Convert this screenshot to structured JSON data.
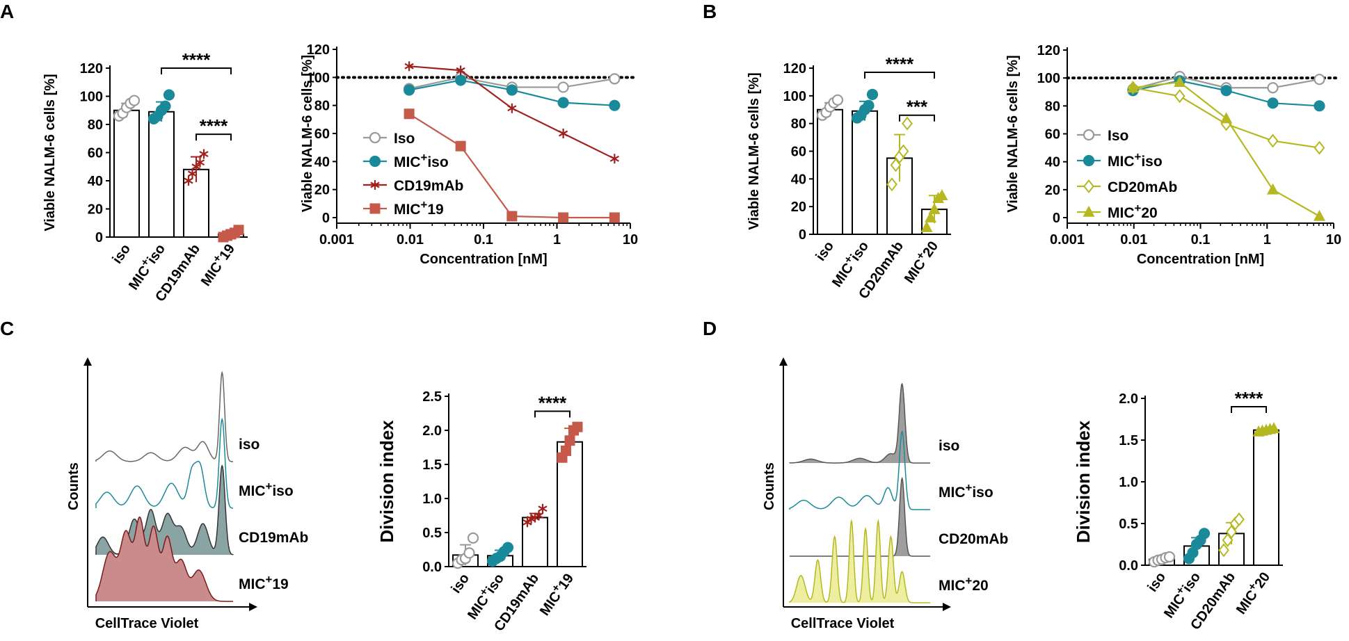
{
  "panel_letters": [
    "A",
    "B",
    "C",
    "D"
  ],
  "chart_data": [
    {
      "id": "A1",
      "type": "bar",
      "ylabel": "Viable NALM-6 cells [%]",
      "ylim": [
        0,
        120
      ],
      "yticks": [
        0,
        20,
        40,
        60,
        80,
        100,
        120
      ],
      "categories": [
        {
          "pre": "iso",
          "sup": "",
          "post": ""
        },
        {
          "pre": "MIC",
          "sup": "+",
          "post": "iso"
        },
        {
          "pre": "CD19mAb",
          "sup": "",
          "post": ""
        },
        {
          "pre": "MIC",
          "sup": "+",
          "post": "19"
        }
      ],
      "bars": [
        {
          "value": 90,
          "err": 5,
          "color": "#999999",
          "marker": "circle-open",
          "points": [
            86,
            88,
            92,
            95,
            97
          ]
        },
        {
          "value": 89,
          "err": 7,
          "color": "#1a8a9a",
          "marker": "circle",
          "points": [
            84,
            86,
            90,
            93,
            101
          ]
        },
        {
          "value": 48,
          "err": 9,
          "color": "#a0201c",
          "marker": "asterisk",
          "points": [
            40,
            45,
            50,
            53,
            59
          ]
        },
        {
          "value": 2,
          "err": 3,
          "color": "#c55a4b",
          "marker": "square",
          "points": [
            0,
            1,
            2,
            3,
            5
          ]
        }
      ],
      "significance": [
        {
          "from": 1,
          "to": 3,
          "label": "****",
          "y": 120
        },
        {
          "from": 2,
          "to": 3,
          "label": "****",
          "y": 73
        }
      ]
    },
    {
      "id": "A2",
      "type": "line",
      "log_x": true,
      "xlabel": "Concentration [nM]",
      "ylabel": "Viable NALM-6 cells [%]",
      "xlim": [
        0.001,
        10
      ],
      "xticks": [
        "0.001",
        "0.01",
        "0.1",
        "1",
        "10"
      ],
      "ylim": [
        0,
        120
      ],
      "yticks": [
        0,
        20,
        40,
        60,
        80,
        100,
        120
      ],
      "reference_line": 100,
      "x": [
        0.0097,
        0.0488,
        0.244,
        1.22,
        6.1
      ],
      "series": [
        {
          "pre": "Iso",
          "sup": "",
          "post": "",
          "color": "#999999",
          "marker": "circle-open",
          "values": [
            92,
            100,
            93,
            93,
            99
          ]
        },
        {
          "pre": "MIC",
          "sup": "+",
          "post": "iso",
          "color": "#1a8a9a",
          "marker": "circle",
          "values": [
            91,
            98,
            91,
            82,
            80
          ]
        },
        {
          "pre": "CD19mAb",
          "sup": "",
          "post": "",
          "color": "#a0201c",
          "marker": "asterisk",
          "values": [
            108,
            105,
            78,
            60,
            42
          ]
        },
        {
          "pre": "MIC",
          "sup": "+",
          "post": "19",
          "color": "#c55a4b",
          "marker": "square",
          "values": [
            74,
            51,
            1,
            0,
            0
          ]
        }
      ]
    },
    {
      "id": "B1",
      "type": "bar",
      "ylabel": "Viable NALM-6 cells [%]",
      "ylim": [
        0,
        120
      ],
      "yticks": [
        0,
        20,
        40,
        60,
        80,
        100,
        120
      ],
      "categories": [
        {
          "pre": "iso",
          "sup": "",
          "post": ""
        },
        {
          "pre": "MIC",
          "sup": "+",
          "post": "iso"
        },
        {
          "pre": "CD20mAb",
          "sup": "",
          "post": ""
        },
        {
          "pre": "MIC",
          "sup": "+",
          "post": "20"
        }
      ],
      "bars": [
        {
          "value": 90,
          "err": 5,
          "color": "#999999",
          "marker": "circle-open",
          "points": [
            86,
            88,
            92,
            95,
            97
          ]
        },
        {
          "value": 89,
          "err": 7,
          "color": "#1a8a9a",
          "marker": "circle",
          "points": [
            84,
            86,
            90,
            93,
            101
          ]
        },
        {
          "value": 55,
          "err": 17,
          "color": "#b5b821",
          "marker": "diamond-open",
          "points": [
            36,
            50,
            56,
            60,
            80
          ]
        },
        {
          "value": 18,
          "err": 10,
          "color": "#b5b821",
          "marker": "triangle",
          "points": [
            5,
            12,
            18,
            26,
            28
          ]
        }
      ],
      "significance": [
        {
          "from": 1,
          "to": 3,
          "label": "****",
          "y": 117
        },
        {
          "from": 2,
          "to": 3,
          "label": "***",
          "y": 86
        }
      ]
    },
    {
      "id": "B2",
      "type": "line",
      "log_x": true,
      "xlabel": "Concentration [nM]",
      "ylabel": "Viable NALM-6 cells [%]",
      "xlim": [
        0.001,
        10
      ],
      "xticks": [
        "0.001",
        "0.01",
        "0.1",
        "1",
        "10"
      ],
      "ylim": [
        0,
        120
      ],
      "yticks": [
        0,
        20,
        40,
        60,
        80,
        100,
        120
      ],
      "reference_line": 100,
      "x": [
        0.0097,
        0.0488,
        0.244,
        1.22,
        6.1
      ],
      "series": [
        {
          "pre": "Iso",
          "sup": "",
          "post": "",
          "color": "#999999",
          "marker": "circle-open",
          "values": [
            92,
            101,
            93,
            93,
            99
          ]
        },
        {
          "pre": "MIC",
          "sup": "+",
          "post": "iso",
          "color": "#1a8a9a",
          "marker": "circle",
          "values": [
            91,
            98,
            91,
            82,
            80
          ]
        },
        {
          "pre": "CD20mAb",
          "sup": "",
          "post": "",
          "color": "#b5b821",
          "marker": "diamond-open",
          "values": [
            93,
            87,
            67,
            55,
            50
          ]
        },
        {
          "pre": "MIC",
          "sup": "+",
          "post": "20",
          "color": "#b5b821",
          "marker": "triangle",
          "values": [
            93,
            97,
            71,
            20,
            1
          ]
        }
      ]
    },
    {
      "id": "C1",
      "type": "histogram",
      "xlabel": "CellTrace Violet",
      "ylabel": "Counts",
      "tracks": [
        {
          "pre": "iso",
          "sup": "",
          "post": "",
          "line": "#666666",
          "fill": "none",
          "peaks": [
            [
              0.1,
              0.05,
              0.12
            ],
            [
              0.4,
              0.05,
              0.1
            ],
            [
              0.65,
              0.05,
              0.16
            ],
            [
              0.78,
              0.04,
              0.22
            ],
            [
              0.92,
              0.018,
              1.0
            ]
          ]
        },
        {
          "pre": "MIC",
          "sup": "+",
          "post": "iso",
          "line": "#1a8a9a",
          "fill": "none",
          "peaks": [
            [
              0.08,
              0.05,
              0.18
            ],
            [
              0.3,
              0.05,
              0.25
            ],
            [
              0.55,
              0.05,
              0.28
            ],
            [
              0.7,
              0.03,
              0.4
            ],
            [
              0.76,
              0.03,
              0.45
            ],
            [
              0.92,
              0.02,
              1.0
            ]
          ]
        },
        {
          "pre": "CD19mAb",
          "sup": "",
          "post": "",
          "line": "#333333",
          "fill": "#8aa3a3",
          "peaks": [
            [
              0.05,
              0.04,
              0.2
            ],
            [
              0.28,
              0.04,
              0.4
            ],
            [
              0.4,
              0.035,
              0.5
            ],
            [
              0.52,
              0.04,
              0.45
            ],
            [
              0.62,
              0.04,
              0.3
            ],
            [
              0.78,
              0.04,
              0.35
            ],
            [
              0.92,
              0.022,
              1.0
            ]
          ]
        },
        {
          "pre": "MIC",
          "sup": "+",
          "post": "19",
          "line": "#7a1a1a",
          "fill": "#c98b8b",
          "peaks": [
            [
              0.1,
              0.05,
              0.55
            ],
            [
              0.22,
              0.04,
              0.75
            ],
            [
              0.32,
              0.035,
              0.9
            ],
            [
              0.42,
              0.035,
              0.82
            ],
            [
              0.52,
              0.035,
              0.7
            ],
            [
              0.62,
              0.04,
              0.45
            ],
            [
              0.75,
              0.05,
              0.35
            ]
          ]
        }
      ]
    },
    {
      "id": "C2",
      "type": "bar",
      "ylabel": "Division index",
      "ylim": [
        0,
        2.5
      ],
      "yticks": [
        "0.0",
        "0.5",
        "1.0",
        "1.5",
        "2.0",
        "2.5"
      ],
      "categories": [
        {
          "pre": "iso",
          "sup": "",
          "post": ""
        },
        {
          "pre": "MIC",
          "sup": "+",
          "post": "iso"
        },
        {
          "pre": "CD19mAb",
          "sup": "",
          "post": ""
        },
        {
          "pre": "MIC",
          "sup": "+",
          "post": "19"
        }
      ],
      "bars": [
        {
          "value": 0.17,
          "err": 0.15,
          "color": "#999999",
          "marker": "circle-open",
          "points": [
            0.05,
            0.1,
            0.12,
            0.2,
            0.42
          ]
        },
        {
          "value": 0.16,
          "err": 0.08,
          "color": "#1a8a9a",
          "marker": "circle",
          "points": [
            0.08,
            0.12,
            0.15,
            0.22,
            0.28
          ]
        },
        {
          "value": 0.72,
          "err": 0.06,
          "color": "#a0201c",
          "marker": "asterisk",
          "points": [
            0.65,
            0.7,
            0.72,
            0.75,
            0.85
          ]
        },
        {
          "value": 1.83,
          "err": 0.2,
          "color": "#c55a4b",
          "marker": "square",
          "points": [
            1.6,
            1.7,
            1.85,
            2.0,
            2.05
          ]
        }
      ],
      "significance": [
        {
          "from": 2,
          "to": 3,
          "label": "****",
          "y": 2.28
        }
      ]
    },
    {
      "id": "D1",
      "type": "histogram",
      "xlabel": "CellTrace Violet",
      "ylabel": "Counts",
      "tracks": [
        {
          "pre": "iso",
          "sup": "",
          "post": "",
          "line": "#555555",
          "fill": "#9e9e9e",
          "peaks": [
            [
              0.15,
              0.05,
              0.05
            ],
            [
              0.5,
              0.05,
              0.06
            ],
            [
              0.72,
              0.04,
              0.12
            ],
            [
              0.8,
              0.02,
              1.0
            ]
          ]
        },
        {
          "pre": "MIC",
          "sup": "+",
          "post": "iso",
          "line": "#1a8a9a",
          "fill": "none",
          "peaks": [
            [
              0.1,
              0.05,
              0.12
            ],
            [
              0.35,
              0.05,
              0.16
            ],
            [
              0.55,
              0.05,
              0.18
            ],
            [
              0.7,
              0.03,
              0.28
            ],
            [
              0.8,
              0.02,
              1.0
            ]
          ]
        },
        {
          "pre": "CD20mAb",
          "sup": "",
          "post": "",
          "line": "#555555",
          "fill": "#9e9e9e",
          "peaks": [
            [
              0.8,
              0.018,
              1.0
            ]
          ]
        },
        {
          "pre": "MIC",
          "sup": "+",
          "post": "20",
          "line": "#b5b821",
          "fill": "#eeeea0",
          "peaks": [
            [
              0.08,
              0.03,
              0.35
            ],
            [
              0.2,
              0.02,
              0.55
            ],
            [
              0.32,
              0.018,
              0.85
            ],
            [
              0.44,
              0.016,
              1.05
            ],
            [
              0.54,
              0.016,
              0.95
            ],
            [
              0.63,
              0.016,
              1.05
            ],
            [
              0.72,
              0.018,
              0.85
            ],
            [
              0.8,
              0.02,
              0.4
            ]
          ]
        }
      ]
    },
    {
      "id": "D2",
      "type": "bar",
      "ylabel": "Division index",
      "ylim": [
        0,
        2.0
      ],
      "yticks": [
        "0.0",
        "0.5",
        "1.0",
        "1.5",
        "2.0"
      ],
      "categories": [
        {
          "pre": "iso",
          "sup": "",
          "post": ""
        },
        {
          "pre": "MIC",
          "sup": "+",
          "post": "iso"
        },
        {
          "pre": "CD20mAb",
          "sup": "",
          "post": ""
        },
        {
          "pre": "MIC",
          "sup": "+",
          "post": "20"
        }
      ],
      "bars": [
        {
          "value": 0.07,
          "err": 0.03,
          "color": "#999999",
          "marker": "circle-open",
          "points": [
            0.04,
            0.06,
            0.07,
            0.09,
            0.1
          ]
        },
        {
          "value": 0.23,
          "err": 0.1,
          "color": "#1a8a9a",
          "marker": "circle",
          "points": [
            0.08,
            0.15,
            0.25,
            0.3,
            0.38
          ]
        },
        {
          "value": 0.38,
          "err": 0.13,
          "color": "#b5b821",
          "marker": "diamond-open",
          "points": [
            0.18,
            0.3,
            0.4,
            0.5,
            0.55
          ]
        },
        {
          "value": 1.62,
          "err": 0.02,
          "color": "#b5b821",
          "marker": "triangle",
          "points": [
            1.6,
            1.61,
            1.62,
            1.63,
            1.64
          ]
        }
      ],
      "significance": [
        {
          "from": 2,
          "to": 3,
          "label": "****",
          "y": 1.9
        }
      ]
    }
  ]
}
